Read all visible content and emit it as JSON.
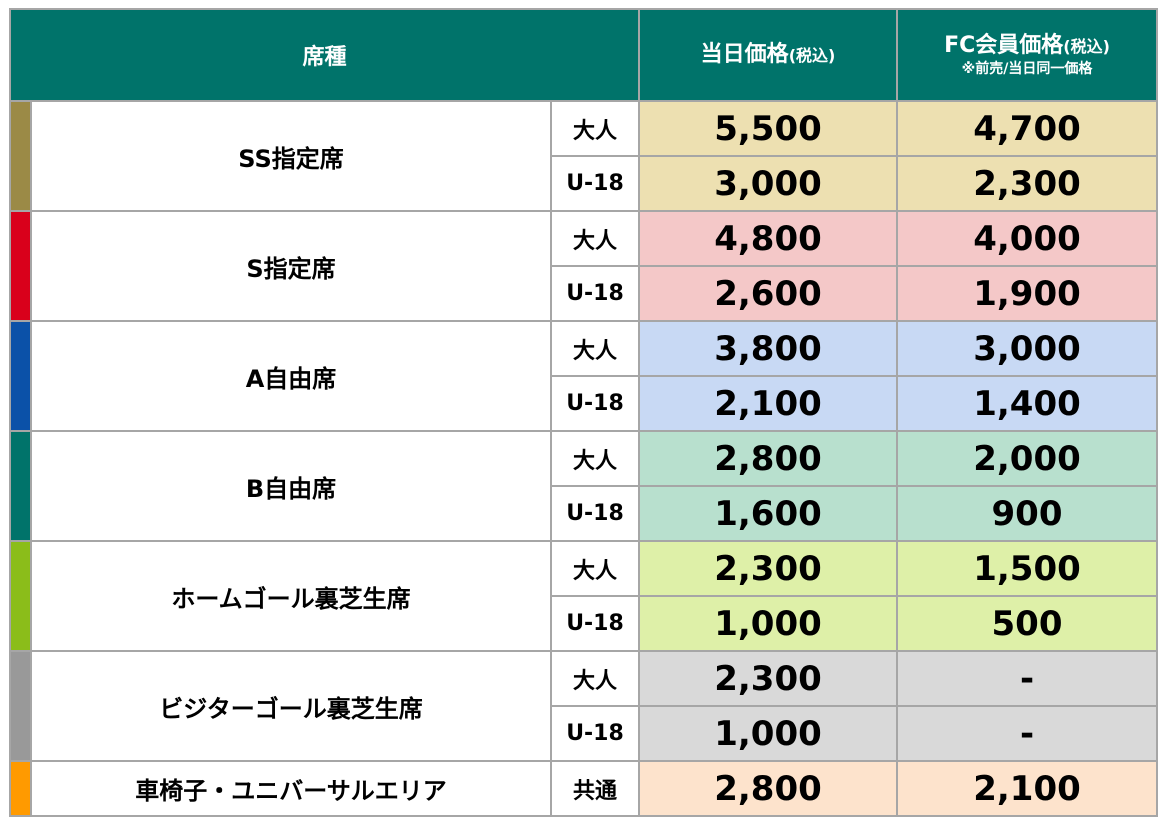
{
  "header": {
    "seat_type": "席種",
    "day_price_title": "当日価格",
    "day_price_tax": "(税込)",
    "fc_price_title": "FC会員価格",
    "fc_price_tax": "(税込)",
    "fc_price_note": "※前売/当日同一価格"
  },
  "rows": [
    {
      "seat": "SS指定席",
      "stripe_color": "#9b8a46",
      "bg_color": "#ede0b1",
      "tiers": [
        {
          "age": "大人",
          "day_price": "5,500",
          "fc_price": "4,700"
        },
        {
          "age": "U-18",
          "day_price": "3,000",
          "fc_price": "2,300"
        }
      ]
    },
    {
      "seat": "S指定席",
      "stripe_color": "#d9001b",
      "bg_color": "#f4c8c8",
      "tiers": [
        {
          "age": "大人",
          "day_price": "4,800",
          "fc_price": "4,000"
        },
        {
          "age": "U-18",
          "day_price": "2,600",
          "fc_price": "1,900"
        }
      ]
    },
    {
      "seat": "A自由席",
      "stripe_color": "#0b51a8",
      "bg_color": "#c8d9f4",
      "tiers": [
        {
          "age": "大人",
          "day_price": "3,800",
          "fc_price": "3,000"
        },
        {
          "age": "U-18",
          "day_price": "2,100",
          "fc_price": "1,400"
        }
      ]
    },
    {
      "seat": "B自由席",
      "stripe_color": "#00736a",
      "bg_color": "#b8e0ce",
      "tiers": [
        {
          "age": "大人",
          "day_price": "2,800",
          "fc_price": "2,000"
        },
        {
          "age": "U-18",
          "day_price": "1,600",
          "fc_price": "900"
        }
      ]
    },
    {
      "seat": "ホームゴール裏芝生席",
      "stripe_color": "#8bbd1a",
      "bg_color": "#def0a8",
      "tiers": [
        {
          "age": "大人",
          "day_price": "2,300",
          "fc_price": "1,500"
        },
        {
          "age": "U-18",
          "day_price": "1,000",
          "fc_price": "500"
        }
      ]
    },
    {
      "seat": "ビジターゴール裏芝生席",
      "stripe_color": "#999999",
      "bg_color": "#d9d9d9",
      "tiers": [
        {
          "age": "大人",
          "day_price": "2,300",
          "fc_price": "-"
        },
        {
          "age": "U-18",
          "day_price": "1,000",
          "fc_price": "-"
        }
      ]
    },
    {
      "seat": "車椅子・ユニバーサルエリア",
      "stripe_color": "#ff9a00",
      "bg_color": "#fde3cc",
      "tiers": [
        {
          "age": "共通",
          "day_price": "2,800",
          "fc_price": "2,100"
        }
      ]
    }
  ]
}
